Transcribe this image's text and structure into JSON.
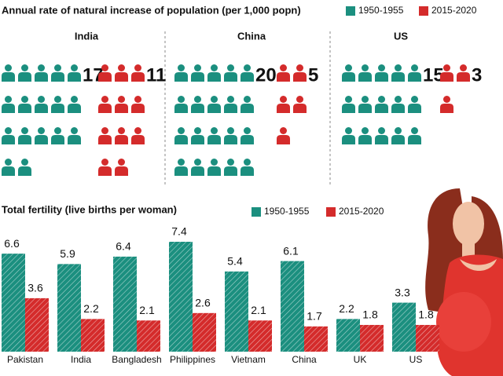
{
  "chart_data": [
    {
      "type": "pictogram",
      "title": "Annual rate of natural increase of population (per 1,000 popn)",
      "categories": [
        "India",
        "China",
        "US"
      ],
      "series": [
        {
          "name": "1950-1955",
          "color": "#1b8f7f",
          "values": [
            17,
            20,
            15
          ]
        },
        {
          "name": "2015-2020",
          "color": "#d42b2b",
          "values": [
            11,
            5,
            3
          ]
        }
      ]
    },
    {
      "type": "bar",
      "title": "Total fertility (live births per woman)",
      "categories": [
        "Pakistan",
        "India",
        "Bangladesh",
        "Philippines",
        "Vietnam",
        "China",
        "UK",
        "US"
      ],
      "series": [
        {
          "name": "1950-1955",
          "color": "#1b8f7f",
          "values": [
            6.6,
            5.9,
            6.4,
            7.4,
            5.4,
            6.1,
            2.2,
            3.3
          ]
        },
        {
          "name": "2015-2020",
          "color": "#d42b2b",
          "values": [
            3.6,
            2.2,
            2.1,
            2.6,
            2.1,
            1.7,
            1.8,
            1.8
          ]
        }
      ]
    }
  ]
}
